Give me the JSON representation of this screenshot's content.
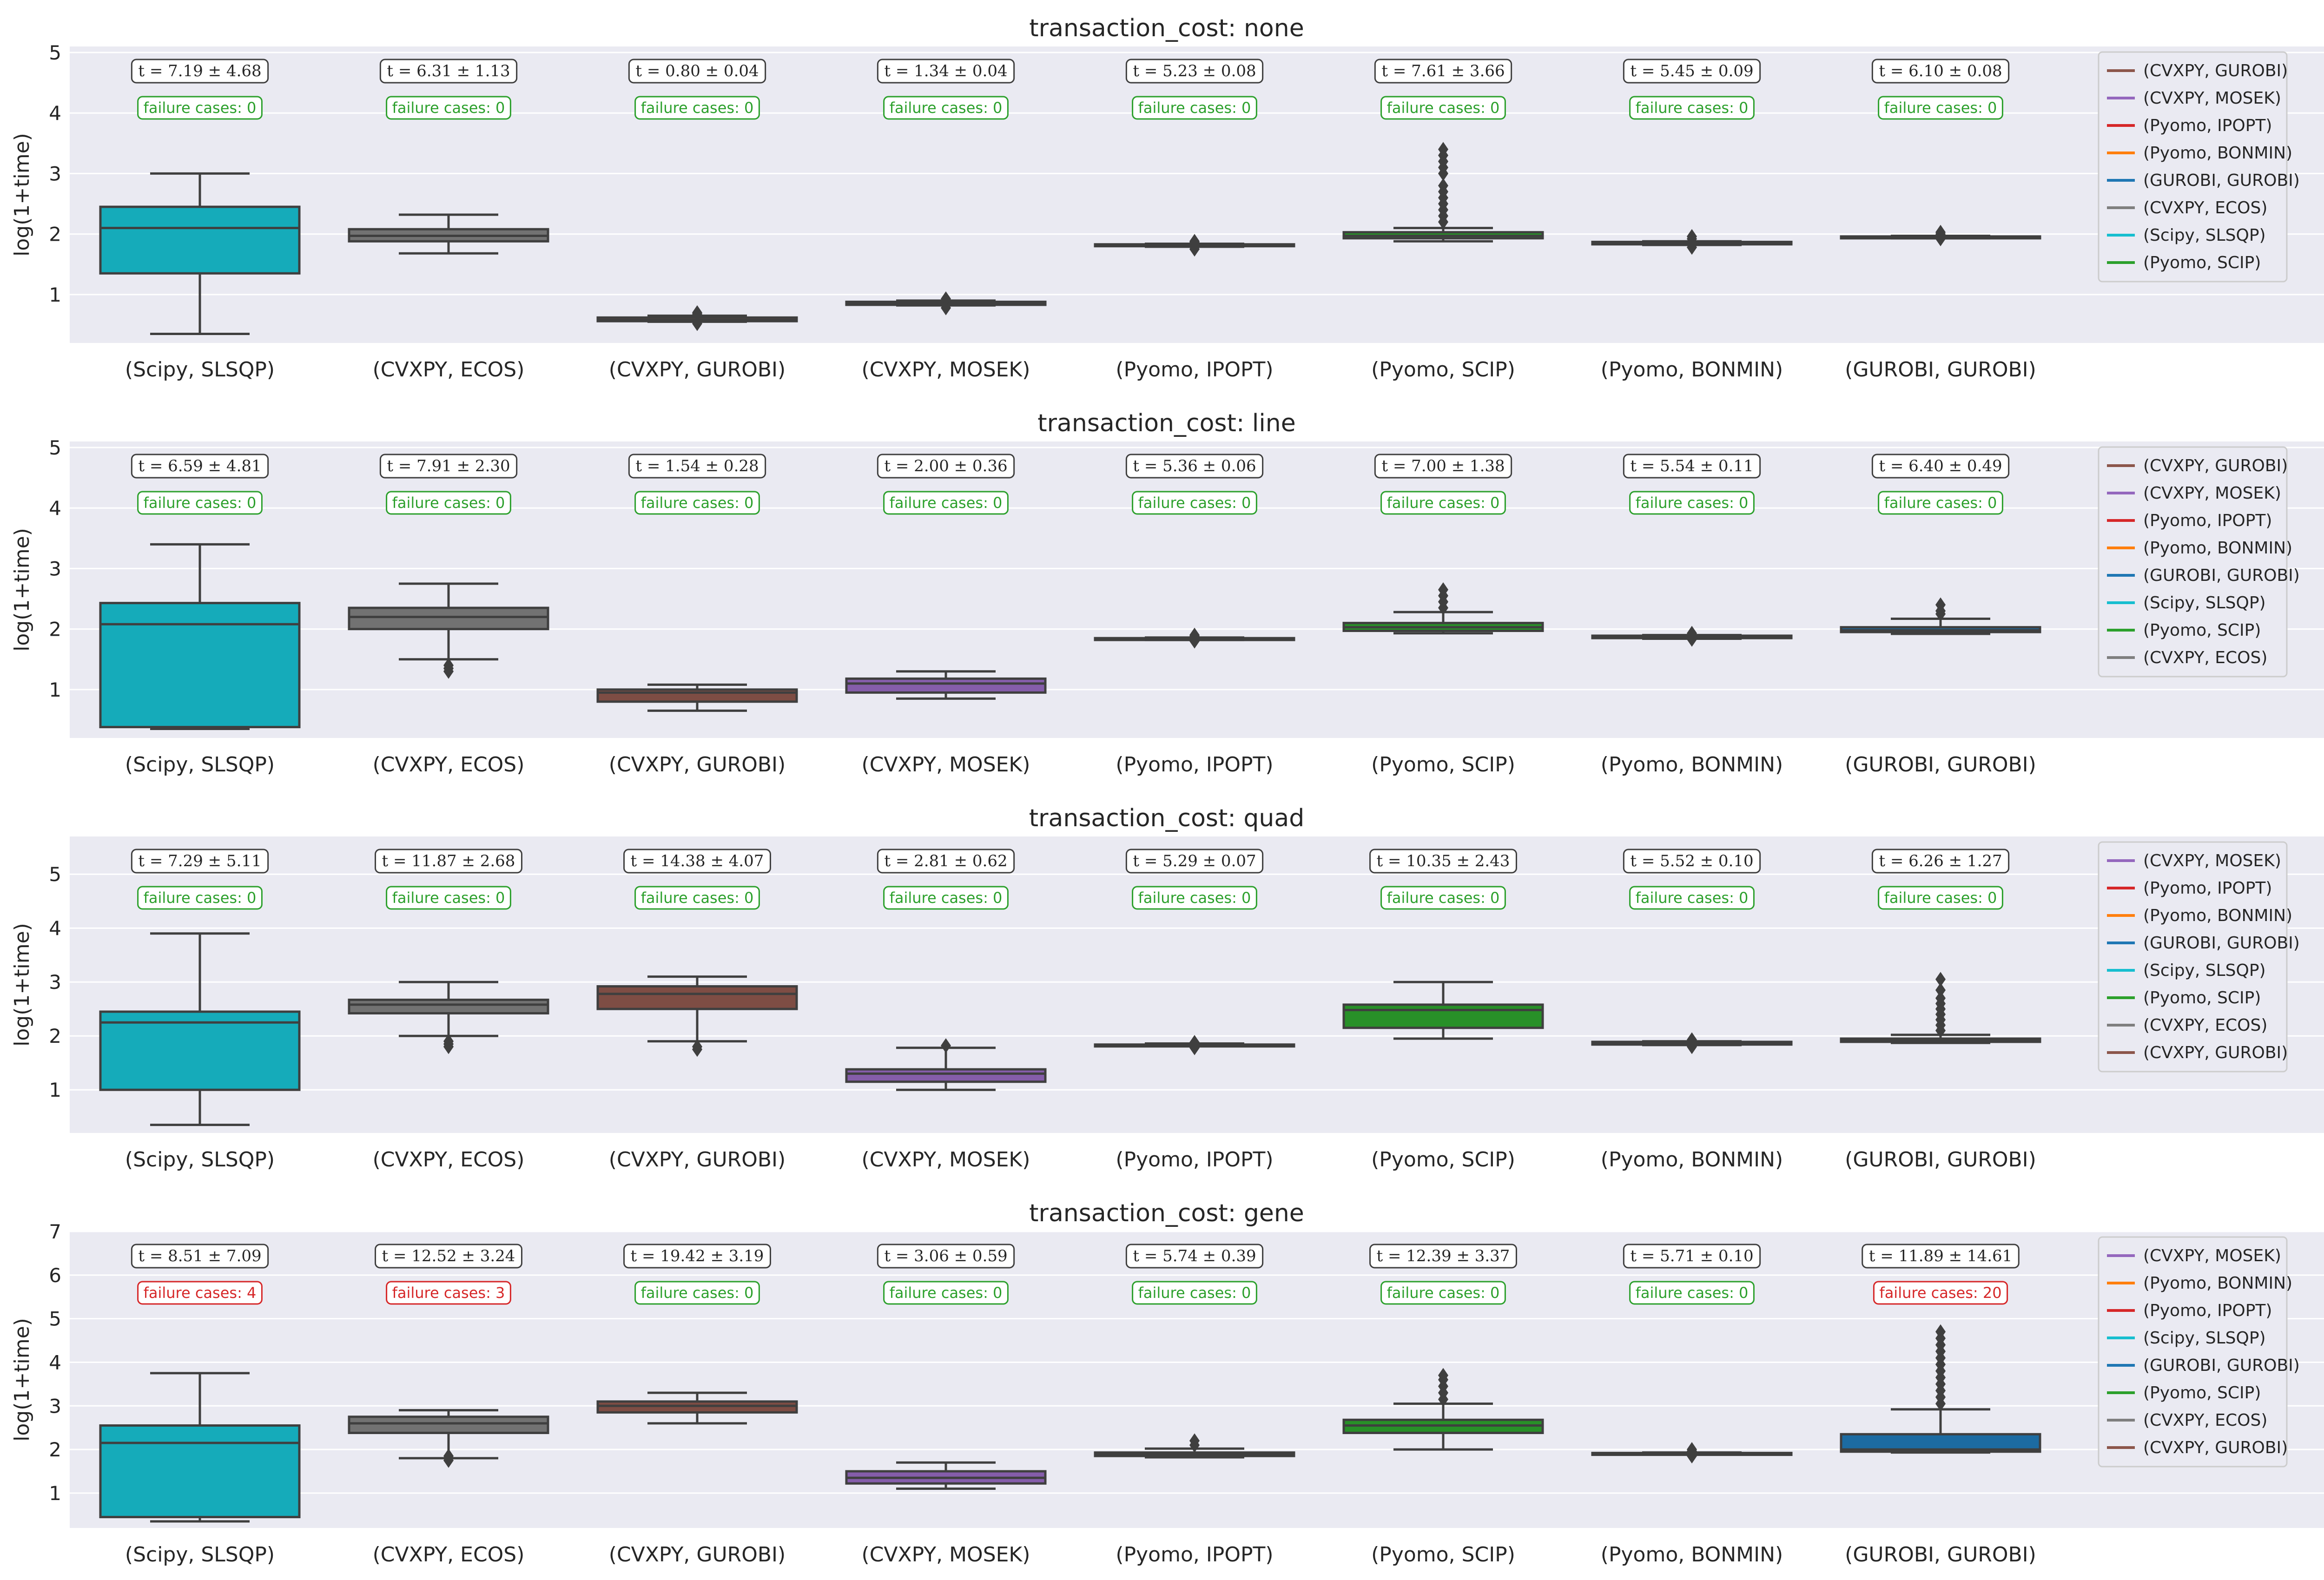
{
  "chart_data": [
    {
      "type": "box",
      "title": "transaction_cost: none",
      "ylabel": "log(1+time)",
      "ylim": [
        0.2,
        5.1
      ],
      "yticks": [
        1,
        2,
        3,
        4,
        5
      ],
      "grid": true,
      "legend_position": "right",
      "categories": [
        "(Scipy, SLSQP)",
        "(CVXPY, ECOS)",
        "(CVXPY, GUROBI)",
        "(CVXPY, MOSEK)",
        "(Pyomo, IPOPT)",
        "(Pyomo, SCIP)",
        "(Pyomo, BONMIN)",
        "(GUROBI, GUROBI)"
      ],
      "stats": [
        "t = 7.19 ± 4.68",
        "t = 6.31 ± 1.13",
        "t = 0.80 ± 0.04",
        "t = 1.34 ± 0.04",
        "t = 5.23 ± 0.08",
        "t = 7.61 ± 3.66",
        "t = 5.45 ± 0.09",
        "t = 6.10 ± 0.08"
      ],
      "failures": [
        "failure cases: 0",
        "failure cases: 0",
        "failure cases: 0",
        "failure cases: 0",
        "failure cases: 0",
        "failure cases: 0",
        "failure cases: 0",
        "failure cases: 0"
      ],
      "failure_counts": [
        0,
        0,
        0,
        0,
        0,
        0,
        0,
        0
      ],
      "boxes": [
        {
          "color": "#17becf",
          "whislo": 0.35,
          "q1": 1.35,
          "med": 2.1,
          "q3": 2.45,
          "whishi": 3.0,
          "fliers": []
        },
        {
          "color": "#7f7f7f",
          "whislo": 1.68,
          "q1": 1.88,
          "med": 1.97,
          "q3": 2.08,
          "whishi": 2.32,
          "fliers": []
        },
        {
          "color": "#8c564b",
          "whislo": 0.55,
          "q1": 0.56,
          "med": 0.58,
          "q3": 0.62,
          "whishi": 0.65,
          "fliers": [
            0.52,
            0.68,
            0.7
          ]
        },
        {
          "color": "#9467bd",
          "whislo": 0.82,
          "q1": 0.83,
          "med": 0.85,
          "q3": 0.88,
          "whishi": 0.9,
          "fliers": [
            0.78,
            0.93
          ]
        },
        {
          "color": "#d62728",
          "whislo": 1.79,
          "q1": 1.8,
          "med": 1.81,
          "q3": 1.83,
          "whishi": 1.84,
          "fliers": [
            1.75,
            1.78,
            1.86,
            1.88
          ]
        },
        {
          "color": "#2ca02c",
          "whislo": 1.88,
          "q1": 1.93,
          "med": 1.97,
          "q3": 2.03,
          "whishi": 2.1,
          "fliers": [
            2.2,
            2.3,
            2.4,
            2.5,
            2.6,
            2.7,
            2.8,
            3.0,
            3.1,
            3.2,
            3.3,
            3.4
          ]
        },
        {
          "color": "#ff7f0e",
          "whislo": 1.82,
          "q1": 1.83,
          "med": 1.85,
          "q3": 1.87,
          "whishi": 1.88,
          "fliers": [
            1.78,
            1.92,
            1.96
          ]
        },
        {
          "color": "#1f77b4",
          "whislo": 1.93,
          "q1": 1.94,
          "med": 1.95,
          "q3": 1.96,
          "whishi": 1.97,
          "fliers": [
            1.92,
            2.0,
            2.03
          ]
        }
      ],
      "legend": [
        {
          "label": "(CVXPY, GUROBI)",
          "color": "#8c564b"
        },
        {
          "label": "(CVXPY, MOSEK)",
          "color": "#9467bd"
        },
        {
          "label": "(Pyomo, IPOPT)",
          "color": "#d62728"
        },
        {
          "label": "(Pyomo, BONMIN)",
          "color": "#ff7f0e"
        },
        {
          "label": "(GUROBI, GUROBI)",
          "color": "#1f77b4"
        },
        {
          "label": "(CVXPY, ECOS)",
          "color": "#7f7f7f"
        },
        {
          "label": "(Scipy, SLSQP)",
          "color": "#17becf"
        },
        {
          "label": "(Pyomo, SCIP)",
          "color": "#2ca02c"
        }
      ]
    },
    {
      "type": "box",
      "title": "transaction_cost: line",
      "ylabel": "log(1+time)",
      "ylim": [
        0.2,
        5.1
      ],
      "yticks": [
        1,
        2,
        3,
        4,
        5
      ],
      "grid": true,
      "legend_position": "right",
      "categories": [
        "(Scipy, SLSQP)",
        "(CVXPY, ECOS)",
        "(CVXPY, GUROBI)",
        "(CVXPY, MOSEK)",
        "(Pyomo, IPOPT)",
        "(Pyomo, SCIP)",
        "(Pyomo, BONMIN)",
        "(GUROBI, GUROBI)"
      ],
      "stats": [
        "t = 6.59 ± 4.81",
        "t = 7.91 ± 2.30",
        "t = 1.54 ± 0.28",
        "t = 2.00 ± 0.36",
        "t = 5.36 ± 0.06",
        "t = 7.00 ± 1.38",
        "t = 5.54 ± 0.11",
        "t = 6.40 ± 0.49"
      ],
      "failures": [
        "failure cases: 0",
        "failure cases: 0",
        "failure cases: 0",
        "failure cases: 0",
        "failure cases: 0",
        "failure cases: 0",
        "failure cases: 0",
        "failure cases: 0"
      ],
      "failure_counts": [
        0,
        0,
        0,
        0,
        0,
        0,
        0,
        0
      ],
      "boxes": [
        {
          "color": "#17becf",
          "whislo": 0.35,
          "q1": 0.38,
          "med": 2.08,
          "q3": 2.43,
          "whishi": 3.4,
          "fliers": []
        },
        {
          "color": "#7f7f7f",
          "whislo": 1.5,
          "q1": 2.0,
          "med": 2.2,
          "q3": 2.35,
          "whishi": 2.75,
          "fliers": [
            1.3,
            1.35,
            1.4
          ]
        },
        {
          "color": "#8c564b",
          "whislo": 0.65,
          "q1": 0.8,
          "med": 0.95,
          "q3": 1.0,
          "whishi": 1.08,
          "fliers": []
        },
        {
          "color": "#9467bd",
          "whislo": 0.85,
          "q1": 0.95,
          "med": 1.1,
          "q3": 1.18,
          "whishi": 1.3,
          "fliers": []
        },
        {
          "color": "#d62728",
          "whislo": 1.82,
          "q1": 1.83,
          "med": 1.84,
          "q3": 1.85,
          "whishi": 1.86,
          "fliers": [
            1.8,
            1.88,
            1.9
          ]
        },
        {
          "color": "#2ca02c",
          "whislo": 1.93,
          "q1": 1.97,
          "med": 2.03,
          "q3": 2.1,
          "whishi": 2.28,
          "fliers": [
            2.35,
            2.45,
            2.55,
            2.65
          ]
        },
        {
          "color": "#ff7f0e",
          "whislo": 1.84,
          "q1": 1.85,
          "med": 1.87,
          "q3": 1.89,
          "whishi": 1.9,
          "fliers": [
            1.83,
            1.93
          ]
        },
        {
          "color": "#1f77b4",
          "whislo": 1.92,
          "q1": 1.95,
          "med": 1.98,
          "q3": 2.03,
          "whishi": 2.17,
          "fliers": [
            2.25,
            2.3,
            2.4
          ]
        }
      ],
      "legend": [
        {
          "label": "(CVXPY, GUROBI)",
          "color": "#8c564b"
        },
        {
          "label": "(CVXPY, MOSEK)",
          "color": "#9467bd"
        },
        {
          "label": "(Pyomo, IPOPT)",
          "color": "#d62728"
        },
        {
          "label": "(Pyomo, BONMIN)",
          "color": "#ff7f0e"
        },
        {
          "label": "(GUROBI, GUROBI)",
          "color": "#1f77b4"
        },
        {
          "label": "(Scipy, SLSQP)",
          "color": "#17becf"
        },
        {
          "label": "(Pyomo, SCIP)",
          "color": "#2ca02c"
        },
        {
          "label": "(CVXPY, ECOS)",
          "color": "#7f7f7f"
        }
      ]
    },
    {
      "type": "box",
      "title": "transaction_cost: quad",
      "ylabel": "log(1+time)",
      "ylim": [
        0.2,
        5.7
      ],
      "yticks": [
        1,
        2,
        3,
        4,
        5
      ],
      "grid": true,
      "legend_position": "right",
      "categories": [
        "(Scipy, SLSQP)",
        "(CVXPY, ECOS)",
        "(CVXPY, GUROBI)",
        "(CVXPY, MOSEK)",
        "(Pyomo, IPOPT)",
        "(Pyomo, SCIP)",
        "(Pyomo, BONMIN)",
        "(GUROBI, GUROBI)"
      ],
      "stats": [
        "t = 7.29 ± 5.11",
        "t = 11.87 ± 2.68",
        "t = 14.38 ± 4.07",
        "t = 2.81 ± 0.62",
        "t = 5.29 ± 0.07",
        "t = 10.35 ± 2.43",
        "t = 5.52 ± 0.10",
        "t = 6.26 ± 1.27"
      ],
      "failures": [
        "failure cases: 0",
        "failure cases: 0",
        "failure cases: 0",
        "failure cases: 0",
        "failure cases: 0",
        "failure cases: 0",
        "failure cases: 0",
        "failure cases: 0"
      ],
      "failure_counts": [
        0,
        0,
        0,
        0,
        0,
        0,
        0,
        0
      ],
      "boxes": [
        {
          "color": "#17becf",
          "whislo": 0.35,
          "q1": 1.0,
          "med": 2.25,
          "q3": 2.45,
          "whishi": 3.9,
          "fliers": []
        },
        {
          "color": "#7f7f7f",
          "whislo": 2.0,
          "q1": 2.42,
          "med": 2.58,
          "q3": 2.67,
          "whishi": 3.0,
          "fliers": [
            1.8,
            1.85,
            1.9
          ]
        },
        {
          "color": "#8c564b",
          "whislo": 1.9,
          "q1": 2.5,
          "med": 2.78,
          "q3": 2.92,
          "whishi": 3.1,
          "fliers": [
            1.75,
            1.8
          ]
        },
        {
          "color": "#9467bd",
          "whislo": 1.0,
          "q1": 1.15,
          "med": 1.3,
          "q3": 1.38,
          "whishi": 1.78,
          "fliers": [
            1.82
          ]
        },
        {
          "color": "#d62728",
          "whislo": 1.81,
          "q1": 1.82,
          "med": 1.83,
          "q3": 1.84,
          "whishi": 1.86,
          "fliers": [
            1.78,
            1.88
          ]
        },
        {
          "color": "#2ca02c",
          "whislo": 1.95,
          "q1": 2.15,
          "med": 2.48,
          "q3": 2.58,
          "whishi": 3.0,
          "fliers": []
        },
        {
          "color": "#ff7f0e",
          "whislo": 1.83,
          "q1": 1.84,
          "med": 1.86,
          "q3": 1.89,
          "whishi": 1.9,
          "fliers": [
            1.8,
            1.93
          ]
        },
        {
          "color": "#1f77b4",
          "whislo": 1.87,
          "q1": 1.89,
          "med": 1.92,
          "q3": 1.95,
          "whishi": 2.02,
          "fliers": [
            2.1,
            2.2,
            2.3,
            2.4,
            2.5,
            2.6,
            2.7,
            2.85,
            3.05
          ]
        }
      ],
      "legend": [
        {
          "label": "(CVXPY, MOSEK)",
          "color": "#9467bd"
        },
        {
          "label": "(Pyomo, IPOPT)",
          "color": "#d62728"
        },
        {
          "label": "(Pyomo, BONMIN)",
          "color": "#ff7f0e"
        },
        {
          "label": "(GUROBI, GUROBI)",
          "color": "#1f77b4"
        },
        {
          "label": "(Scipy, SLSQP)",
          "color": "#17becf"
        },
        {
          "label": "(Pyomo, SCIP)",
          "color": "#2ca02c"
        },
        {
          "label": "(CVXPY, ECOS)",
          "color": "#7f7f7f"
        },
        {
          "label": "(CVXPY, GUROBI)",
          "color": "#8c564b"
        }
      ]
    },
    {
      "type": "box",
      "title": "transaction_cost: gene",
      "ylabel": "log(1+time)",
      "ylim": [
        0.2,
        7.0
      ],
      "yticks": [
        1,
        2,
        3,
        4,
        5,
        6,
        7
      ],
      "grid": true,
      "legend_position": "right",
      "categories": [
        "(Scipy, SLSQP)",
        "(CVXPY, ECOS)",
        "(CVXPY, GUROBI)",
        "(CVXPY, MOSEK)",
        "(Pyomo, IPOPT)",
        "(Pyomo, SCIP)",
        "(Pyomo, BONMIN)",
        "(GUROBI, GUROBI)"
      ],
      "stats": [
        "t = 8.51 ± 7.09",
        "t = 12.52 ± 3.24",
        "t = 19.42 ± 3.19",
        "t = 3.06 ± 0.59",
        "t = 5.74 ± 0.39",
        "t = 12.39 ± 3.37",
        "t = 5.71 ± 0.10",
        "t = 11.89 ± 14.61"
      ],
      "failures": [
        "failure cases: 4",
        "failure cases: 3",
        "failure cases: 0",
        "failure cases: 0",
        "failure cases: 0",
        "failure cases: 0",
        "failure cases: 0",
        "failure cases: 20"
      ],
      "failure_counts": [
        4,
        3,
        0,
        0,
        0,
        0,
        0,
        20
      ],
      "boxes": [
        {
          "color": "#17becf",
          "whislo": 0.35,
          "q1": 0.45,
          "med": 2.15,
          "q3": 2.55,
          "whishi": 3.75,
          "fliers": []
        },
        {
          "color": "#7f7f7f",
          "whislo": 1.8,
          "q1": 2.38,
          "med": 2.6,
          "q3": 2.75,
          "whishi": 2.9,
          "fliers": [
            1.75,
            1.85
          ]
        },
        {
          "color": "#8c564b",
          "whislo": 2.6,
          "q1": 2.85,
          "med": 3.0,
          "q3": 3.1,
          "whishi": 3.3,
          "fliers": []
        },
        {
          "color": "#9467bd",
          "whislo": 1.1,
          "q1": 1.22,
          "med": 1.35,
          "q3": 1.5,
          "whishi": 1.7,
          "fliers": []
        },
        {
          "color": "#d62728",
          "whislo": 1.82,
          "q1": 1.85,
          "med": 1.88,
          "q3": 1.93,
          "whishi": 2.02,
          "fliers": [
            2.1,
            2.2
          ]
        },
        {
          "color": "#2ca02c",
          "whislo": 2.0,
          "q1": 2.38,
          "med": 2.55,
          "q3": 2.68,
          "whishi": 3.05,
          "fliers": [
            3.15,
            3.3,
            3.45,
            3.6,
            3.7
          ]
        },
        {
          "color": "#ff7f0e",
          "whislo": 1.88,
          "q1": 1.89,
          "med": 1.9,
          "q3": 1.92,
          "whishi": 1.93,
          "fliers": [
            1.85,
            1.96,
            2.0
          ]
        },
        {
          "color": "#1f77b4",
          "whislo": 1.93,
          "q1": 1.95,
          "med": 2.0,
          "q3": 2.35,
          "whishi": 2.92,
          "fliers": [
            3.05,
            3.2,
            3.35,
            3.5,
            3.65,
            3.8,
            3.95,
            4.1,
            4.25,
            4.4,
            4.55,
            4.7
          ]
        }
      ],
      "legend": [
        {
          "label": "(CVXPY, MOSEK)",
          "color": "#9467bd"
        },
        {
          "label": "(Pyomo, BONMIN)",
          "color": "#ff7f0e"
        },
        {
          "label": "(Pyomo, IPOPT)",
          "color": "#d62728"
        },
        {
          "label": "(Scipy, SLSQP)",
          "color": "#17becf"
        },
        {
          "label": "(GUROBI, GUROBI)",
          "color": "#1f77b4"
        },
        {
          "label": "(Pyomo, SCIP)",
          "color": "#2ca02c"
        },
        {
          "label": "(CVXPY, ECOS)",
          "color": "#7f7f7f"
        },
        {
          "label": "(CVXPY, GUROBI)",
          "color": "#8c564b"
        }
      ]
    }
  ],
  "colors": {
    "axes_background": "#eaeaf2",
    "grid": "#ffffff",
    "box_edge": "#3f3f3f",
    "success": "#2ca02c",
    "failure": "#d62728",
    "stat_edge": "#3f3f3f"
  }
}
